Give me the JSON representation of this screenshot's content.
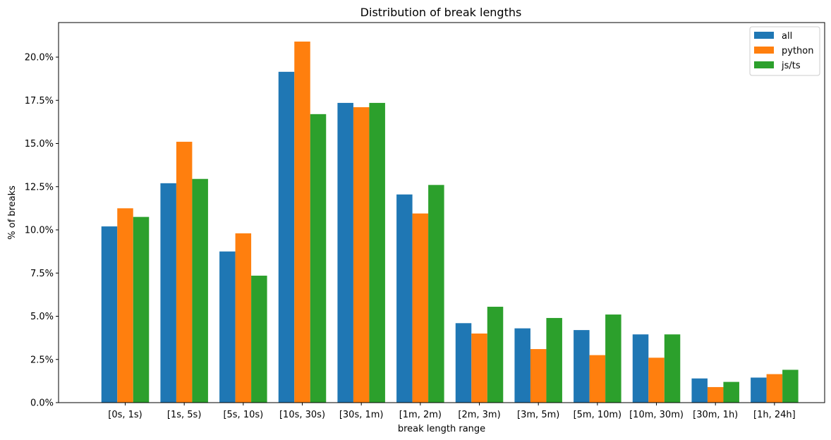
{
  "chart_data": {
    "type": "bar",
    "title": "Distribution of break lengths",
    "xlabel": "break length range",
    "ylabel": "% of breaks",
    "ylim": [
      0,
      22
    ],
    "yticks": [
      "0.0%",
      "2.5%",
      "5.0%",
      "7.5%",
      "10.0%",
      "12.5%",
      "15.0%",
      "17.5%",
      "20.0%"
    ],
    "ytick_values": [
      0,
      2.5,
      5.0,
      7.5,
      10.0,
      12.5,
      15.0,
      17.5,
      20.0
    ],
    "categories": [
      "[0s, 1s)",
      "[1s, 5s)",
      "[5s, 10s)",
      "[10s, 30s)",
      "[30s, 1m)",
      "[1m, 2m)",
      "[2m, 3m)",
      "[3m, 5m)",
      "[5m, 10m)",
      "[10m, 30m)",
      "[30m, 1h)",
      "[1h, 24h]"
    ],
    "series": [
      {
        "name": "all",
        "color": "#1f77b4",
        "values": [
          10.2,
          12.7,
          8.75,
          19.15,
          17.35,
          12.05,
          4.6,
          4.3,
          4.2,
          3.95,
          1.4,
          1.45
        ]
      },
      {
        "name": "python",
        "color": "#ff7f0e",
        "values": [
          11.25,
          15.1,
          9.8,
          20.9,
          17.1,
          10.95,
          4.0,
          3.1,
          2.75,
          2.6,
          0.9,
          1.65
        ]
      },
      {
        "name": "js/ts",
        "color": "#2ca02c",
        "values": [
          10.75,
          12.95,
          7.35,
          16.7,
          17.35,
          12.6,
          5.55,
          4.9,
          5.1,
          3.95,
          1.2,
          1.9
        ]
      }
    ],
    "grid": false,
    "legend_position": "top-right"
  }
}
